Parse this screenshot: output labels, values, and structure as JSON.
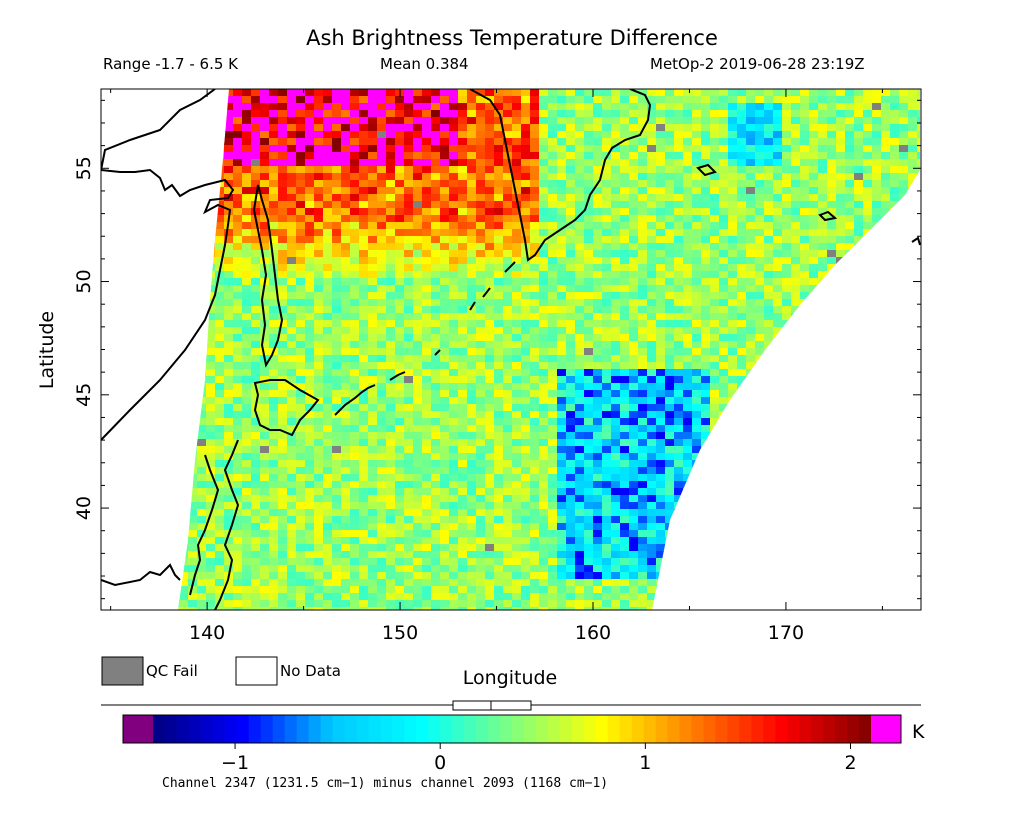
{
  "header": {
    "title": "Ash Brightness Temperature Difference",
    "range": "Range -1.7 - 6.5 K",
    "mean": "Mean 0.384",
    "satellite_time": "MetOp-2 2019-06-28 23:19Z"
  },
  "legend": {
    "qc_fail": "QC Fail",
    "no_data": "No Data",
    "qc_fail_color": "#808080",
    "no_data_color": "#ffffff"
  },
  "colorbar": {
    "unit": "K",
    "ticks": [
      -1,
      0,
      1,
      2
    ],
    "tick_labels": [
      "−1",
      "0",
      "1",
      "2"
    ],
    "min": -1.4,
    "max": 2.1,
    "under_color": "#800080",
    "over_color": "#ff00ff",
    "caption": "Channel 2347 (1231.5 cm−1) minus channel 2093 (1168 cm−1)"
  },
  "chart_data": {
    "type": "heatmap",
    "title": "Ash Brightness Temperature Difference",
    "xlabel": "Longitude",
    "ylabel": "Latitude",
    "xlim": [
      134.5,
      177
    ],
    "ylim": [
      35.5,
      58.5
    ],
    "xticks": [
      140,
      150,
      160,
      170
    ],
    "yticks": [
      40,
      45,
      50,
      55
    ],
    "xtick_labels": [
      "140",
      "150",
      "160",
      "170"
    ],
    "ytick_labels": [
      "40",
      "45",
      "50",
      "55"
    ],
    "value_range": [
      -1.7,
      6.5
    ],
    "mean": 0.384,
    "colorscale": [
      "#000080",
      "#0000ff",
      "#00c8ff",
      "#00ffff",
      "#7fff7f",
      "#ffff00",
      "#ff8000",
      "#ff0000",
      "#800000"
    ],
    "regions": [
      {
        "name": "background",
        "value": 0.45
      },
      {
        "name": "northwest band (50–56N, 140–157E)",
        "value": 1.3
      },
      {
        "name": "saturated area (55–58.5N, 141–153E)",
        "value": 2.5
      },
      {
        "name": "eastern low band (37–46N, 158–166E)",
        "value": -0.5
      },
      {
        "name": "northeast low (55–58N, 167–170E)",
        "value": -0.4
      }
    ],
    "grid": false
  }
}
